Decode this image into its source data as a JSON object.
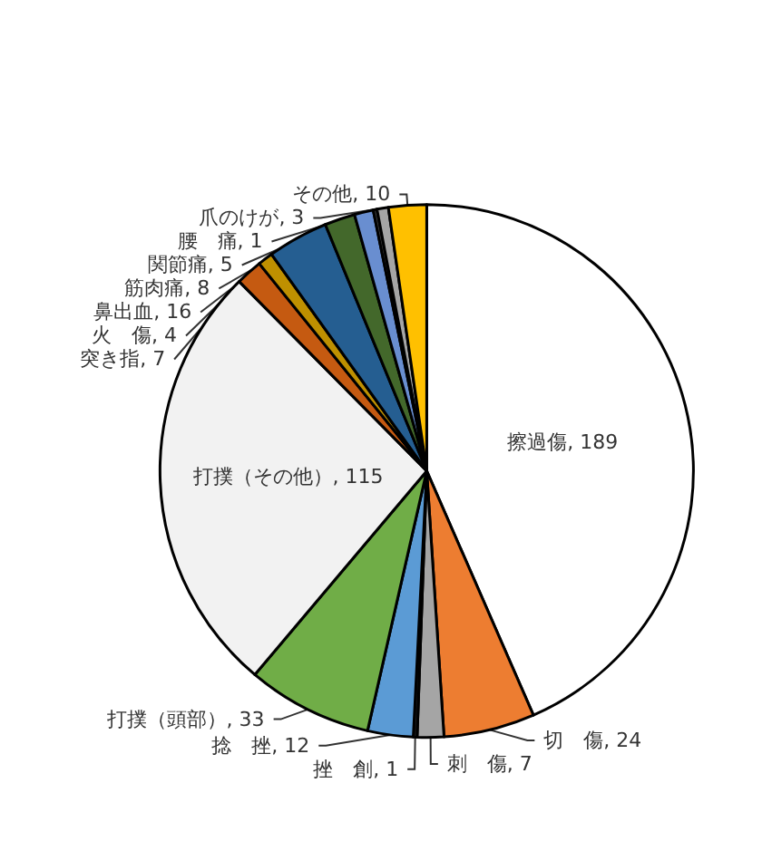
{
  "chart_data": {
    "type": "pie",
    "categories": [
      "擦過傷",
      "切　傷",
      "刺　傷",
      "挫　創",
      "捻　挫",
      "打撲（頭部）",
      "打撲（その他）",
      "突き指",
      "火　傷",
      "鼻出血",
      "筋肉痛",
      "関節痛",
      "腰　痛",
      "爪のけが",
      "その他"
    ],
    "values": [
      189,
      24,
      7,
      1,
      12,
      33,
      115,
      7,
      4,
      16,
      8,
      5,
      1,
      3,
      10
    ],
    "value_labels": [
      ", 189",
      ", 24",
      ", 7",
      ", 1",
      ", 12",
      ", 33",
      ", 115",
      ", 7",
      ", 4",
      ", 16",
      ", 8",
      ", 5",
      ", 1",
      ", 3",
      ", 10"
    ],
    "colors": [
      "#ffffff",
      "#ed7d31",
      "#a5a5a5",
      "#1f1f1f",
      "#5b9bd5",
      "#70ad47",
      "#f2f2f2",
      "#c55a11",
      "#bf9000",
      "#255e91",
      "#43682b",
      "#698ed0",
      "#404040",
      "#a5a5a5",
      "#ffc000"
    ],
    "legend": false
  }
}
